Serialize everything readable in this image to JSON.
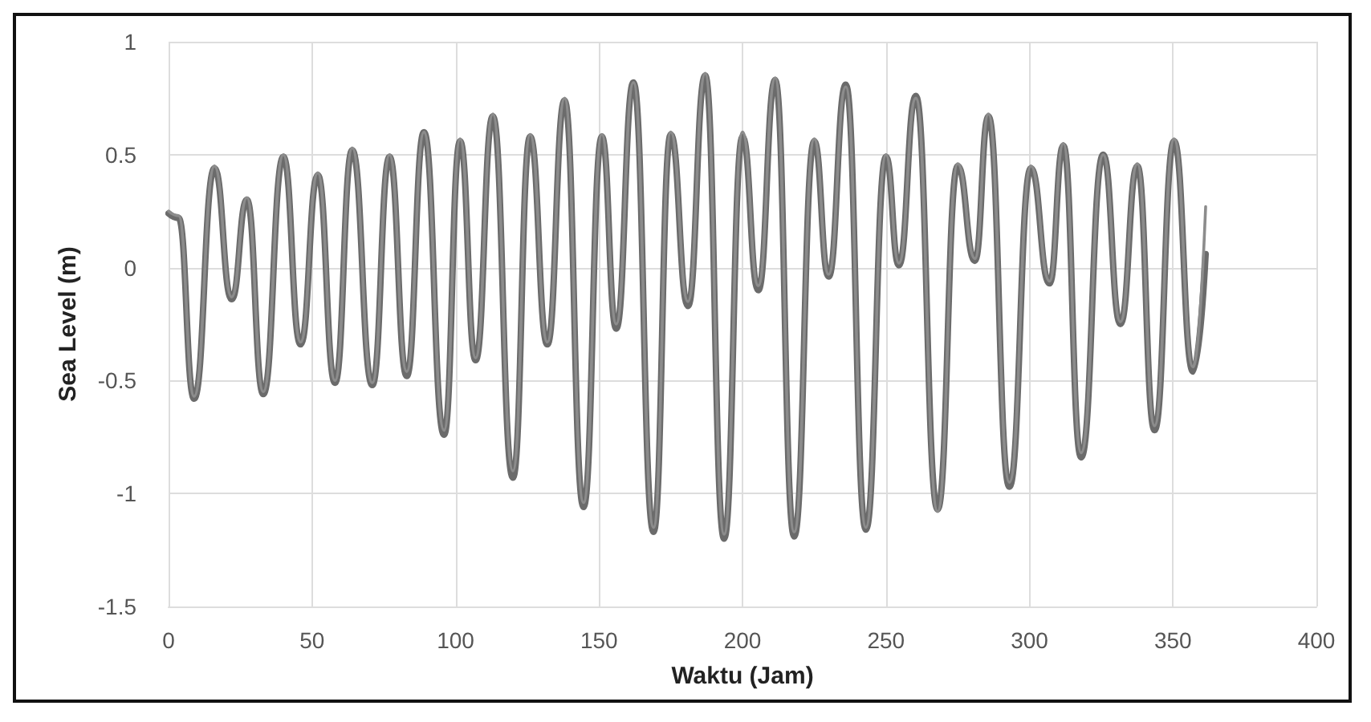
{
  "chart_data": {
    "type": "line",
    "xlabel": "Waktu (Jam)",
    "ylabel": "Sea Level (m)",
    "xlim": [
      0,
      400
    ],
    "xticks": [
      0,
      50,
      100,
      150,
      200,
      250,
      300,
      350,
      400
    ],
    "ylim": [
      -1.5,
      1
    ],
    "yticks": [
      -1.5,
      -1,
      -0.5,
      0,
      0.5,
      1
    ],
    "grid": true,
    "marker": "none",
    "line_style": "solid",
    "series": [
      {
        "color": "#6b6b6b",
        "x": [
          0,
          3.5,
          8.9,
          16,
          22,
          27.3,
          33,
          40,
          46,
          52,
          58,
          64,
          71,
          77,
          83,
          89,
          96,
          101.6,
          107,
          113,
          120,
          126,
          132,
          138,
          144.6,
          151,
          156,
          162,
          169,
          175,
          181,
          187,
          193.6,
          200,
          205.5,
          211.4,
          218,
          225,
          230,
          236,
          243,
          250,
          254.5,
          260.4,
          268,
          275,
          281,
          285.7,
          293,
          300.5,
          307,
          311.8,
          318,
          325.7,
          331.7,
          337.6,
          343.6,
          350.4,
          357,
          361.4
        ],
        "values": [
          0.24,
          0.22,
          -0.58,
          0.44,
          -0.14,
          0.3,
          -0.56,
          0.49,
          -0.34,
          0.41,
          -0.51,
          0.52,
          -0.52,
          0.49,
          -0.48,
          0.6,
          -0.74,
          0.56,
          -0.41,
          0.67,
          -0.93,
          0.58,
          -0.34,
          0.74,
          -1.06,
          0.58,
          -0.27,
          0.82,
          -1.17,
          0.59,
          -0.17,
          0.85,
          -1.2,
          0.58,
          -0.1,
          0.83,
          -1.19,
          0.56,
          -0.04,
          0.81,
          -1.16,
          0.49,
          0.01,
          0.76,
          -1.07,
          0.45,
          0.03,
          0.67,
          -0.97,
          0.44,
          -0.07,
          0.54,
          -0.84,
          0.5,
          -0.25,
          0.45,
          -0.72,
          0.56,
          -0.46,
          0.06
        ]
      },
      {
        "color": "#8c8c8c",
        "x": [
          0,
          3.5,
          8.9,
          16,
          22,
          27.3,
          33,
          40,
          46,
          52,
          58,
          64,
          71,
          77,
          83,
          89,
          96,
          101.6,
          107,
          113,
          120,
          126,
          132,
          138,
          144.6,
          151,
          156,
          162,
          169,
          175,
          181,
          187,
          193.6,
          200,
          205.5,
          211.4,
          218,
          225,
          230,
          236,
          243,
          250,
          254.5,
          260.4,
          268,
          275,
          281,
          285.7,
          293,
          300.5,
          307,
          311.8,
          318,
          325.7,
          331.7,
          337.6,
          343.6,
          350.4,
          357,
          361.4
        ],
        "values": [
          0.25,
          0.23,
          -0.57,
          0.45,
          -0.13,
          0.31,
          -0.55,
          0.5,
          -0.33,
          0.42,
          -0.5,
          0.53,
          -0.51,
          0.5,
          -0.46,
          0.6,
          -0.72,
          0.57,
          -0.4,
          0.68,
          -0.9,
          0.59,
          -0.33,
          0.75,
          -1.04,
          0.59,
          -0.25,
          0.82,
          -1.15,
          0.6,
          -0.15,
          0.86,
          -1.18,
          0.6,
          -0.08,
          0.84,
          -1.17,
          0.57,
          -0.03,
          0.8,
          -1.15,
          0.5,
          0.02,
          0.75,
          -1.08,
          0.46,
          0.04,
          0.68,
          -0.95,
          0.45,
          -0.06,
          0.55,
          -0.82,
          0.5,
          -0.24,
          0.46,
          -0.7,
          0.57,
          -0.44,
          0.27
        ]
      }
    ]
  }
}
